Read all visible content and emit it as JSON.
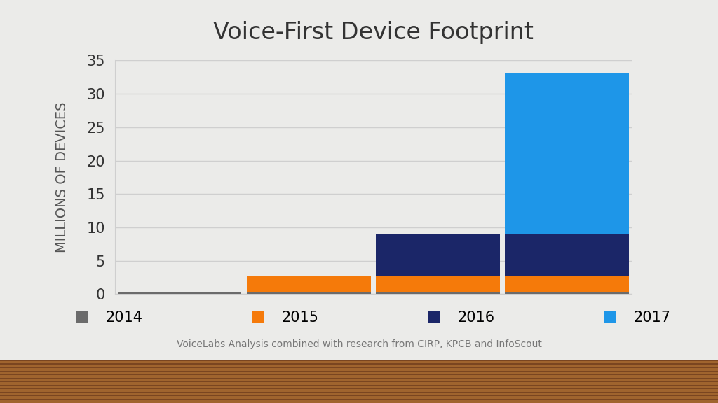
{
  "chart_data": {
    "type": "bar",
    "stacked": true,
    "title": "Voice-First Device Footprint",
    "y_label": "MILLIONS OF DEVICES",
    "source": "VoiceLabs Analysis combined with research from CIRP, KPCB and InfoScout",
    "categories": [
      null,
      null,
      null,
      null
    ],
    "series": [
      {
        "name": "2014",
        "color": "#6b6b6b",
        "values": [
          0.4,
          0.4,
          0.4,
          0.4
        ]
      },
      {
        "name": "2015",
        "color": "#f57a0a",
        "values": [
          null,
          2.4,
          2.4,
          2.4
        ]
      },
      {
        "name": "2016",
        "color": "#1b2668",
        "values": [
          null,
          null,
          6.2,
          6.2
        ]
      },
      {
        "name": "2017",
        "color": "#1e96e8",
        "values": [
          null,
          null,
          null,
          24
        ]
      }
    ],
    "ylim": [
      0,
      35
    ],
    "yticks": [
      0,
      5,
      10,
      15,
      20,
      25,
      30,
      35
    ],
    "grid": true,
    "legend": "upper center",
    "tick_labels": "y"
  }
}
